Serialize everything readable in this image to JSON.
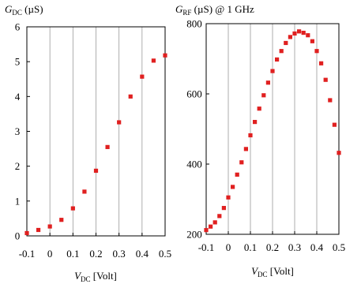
{
  "chart_data": [
    {
      "type": "scatter",
      "ylabel": {
        "symbol": "G",
        "subscript": "DC",
        "unit": "(µS)"
      },
      "xlabel": {
        "symbol": "V",
        "subscript": "DC",
        "unit": "[Volt]"
      },
      "xlim": [
        -0.1,
        0.5
      ],
      "ylim": [
        0,
        6
      ],
      "x_ticks": [
        -0.1,
        0,
        0.1,
        0.2,
        0.3,
        0.4,
        0.5
      ],
      "x_tick_labels": [
        "-0.1",
        "0",
        "0.1",
        "0.2",
        "0.3",
        "0.4",
        "0.5"
      ],
      "y_ticks": [
        0,
        1,
        2,
        3,
        4,
        5,
        6
      ],
      "y_tick_labels": [
        "0",
        "1",
        "2",
        "3",
        "4",
        "5",
        "6"
      ],
      "grid": "vertical",
      "marker_color": "#e02020",
      "series": [
        {
          "x": [
            -0.1,
            -0.05,
            0.0,
            0.05,
            0.1,
            0.15,
            0.2,
            0.25,
            0.3,
            0.35,
            0.4,
            0.45,
            0.5
          ],
          "y": [
            0.08,
            0.17,
            0.27,
            0.46,
            0.79,
            1.27,
            1.87,
            2.55,
            3.26,
            4.0,
            4.57,
            5.03,
            5.18
          ]
        }
      ]
    },
    {
      "type": "scatter",
      "ylabel": {
        "symbol": "G",
        "subscript": "RF",
        "unit": "(µS) @ 1 GHz"
      },
      "xlabel": {
        "symbol": "V",
        "subscript": "DC",
        "unit": "[Volt]"
      },
      "xlim": [
        -0.1,
        0.5
      ],
      "ylim": [
        200,
        800
      ],
      "x_ticks": [
        -0.1,
        0,
        0.1,
        0.2,
        0.3,
        0.4,
        0.5
      ],
      "x_tick_labels": [
        "-0.1",
        "0",
        "0.1",
        "0.2",
        "0.3",
        "0.4",
        "0.5"
      ],
      "y_ticks": [
        200,
        400,
        600,
        800
      ],
      "y_tick_labels": [
        "200",
        "400",
        "600",
        "800"
      ],
      "grid": "vertical",
      "marker_color": "#e02020",
      "series": [
        {
          "x": [
            -0.1,
            -0.08,
            -0.06,
            -0.04,
            -0.02,
            0.0,
            0.02,
            0.04,
            0.06,
            0.08,
            0.1,
            0.12,
            0.14,
            0.16,
            0.18,
            0.2,
            0.22,
            0.24,
            0.26,
            0.28,
            0.3,
            0.32,
            0.34,
            0.36,
            0.38,
            0.4,
            0.42,
            0.44,
            0.46,
            0.48,
            0.5
          ],
          "y": [
            212,
            222,
            234,
            252,
            275,
            305,
            335,
            370,
            405,
            443,
            482,
            520,
            558,
            596,
            632,
            665,
            698,
            722,
            745,
            762,
            772,
            778,
            774,
            767,
            750,
            722,
            687,
            640,
            582,
            512,
            432
          ]
        }
      ]
    }
  ]
}
